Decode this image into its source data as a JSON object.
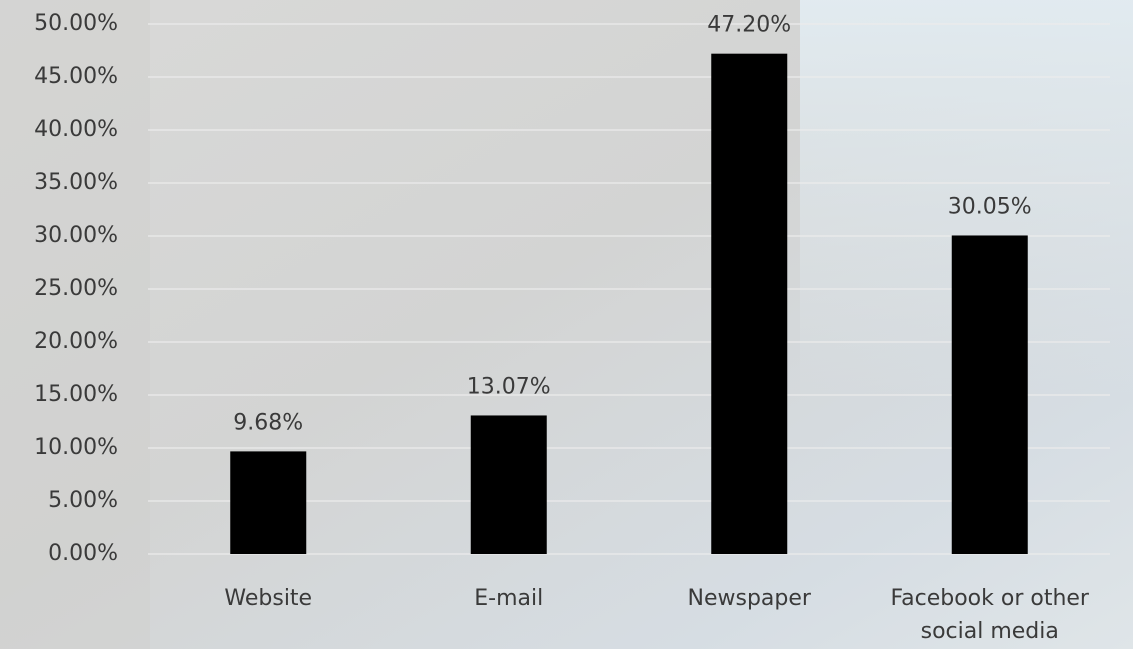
{
  "chart_data": {
    "type": "bar",
    "categories": [
      "Website",
      "E-mail",
      "Newspaper",
      "Facebook or other social media"
    ],
    "values": [
      9.68,
      13.07,
      47.2,
      30.05
    ],
    "value_labels": [
      "9.68%",
      "13.07%",
      "47.20%",
      "30.05%"
    ],
    "color": "#000000",
    "ylim": [
      0,
      50
    ],
    "yticks": [
      {
        "value": 0,
        "label": "0.00%"
      },
      {
        "value": 5,
        "label": "5.00%"
      },
      {
        "value": 10,
        "label": "10.00%"
      },
      {
        "value": 15,
        "label": "15.00%"
      },
      {
        "value": 20,
        "label": "20.00%"
      },
      {
        "value": 25,
        "label": "25.00%"
      },
      {
        "value": 30,
        "label": "30.00%"
      },
      {
        "value": 35,
        "label": "35.00%"
      },
      {
        "value": 40,
        "label": "40.00%"
      },
      {
        "value": 45,
        "label": "45.00%"
      },
      {
        "value": 50,
        "label": "50.00%"
      }
    ],
    "grid": true
  }
}
